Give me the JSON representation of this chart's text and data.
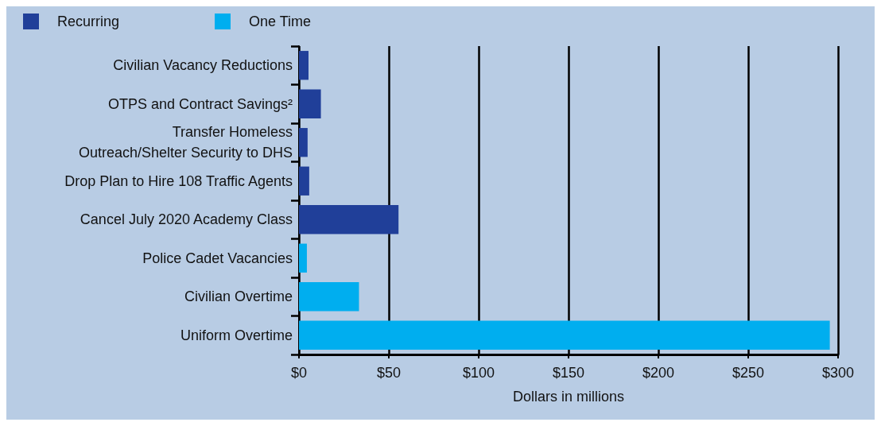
{
  "chart_data": {
    "type": "bar",
    "orientation": "horizontal",
    "xlabel": "Dollars in millions",
    "categories": [
      "Civilian Vacancy Reductions",
      "OTPS and Contract Savings²",
      "Transfer Homeless\nOutreach/Shelter Security to DHS",
      "Drop Plan to Hire 108 Traffic Agents",
      "Cancel July 2020 Academy Class",
      "Police Cadet Vacancies",
      "Civilian Overtime",
      "Uniform Overtime"
    ],
    "series": [
      {
        "name": "Recurring",
        "color": "#203f99",
        "values": [
          5.3,
          12.2,
          4.8,
          5.7,
          55.4,
          null,
          null,
          null
        ]
      },
      {
        "name": "One Time",
        "color": "#00aeef",
        "values": [
          null,
          null,
          null,
          null,
          null,
          4.4,
          33.4,
          295.4
        ]
      }
    ],
    "xlim": [
      0,
      300
    ],
    "xticks": [
      {
        "value": 0,
        "label": "$0"
      },
      {
        "value": 50,
        "label": "$50"
      },
      {
        "value": 100,
        "label": "$100"
      },
      {
        "value": 150,
        "label": "$150"
      },
      {
        "value": 200,
        "label": "$200"
      },
      {
        "value": 250,
        "label": "$250"
      },
      {
        "value": 300,
        "label": "$300"
      }
    ],
    "grid": "x",
    "legend": "top left"
  }
}
